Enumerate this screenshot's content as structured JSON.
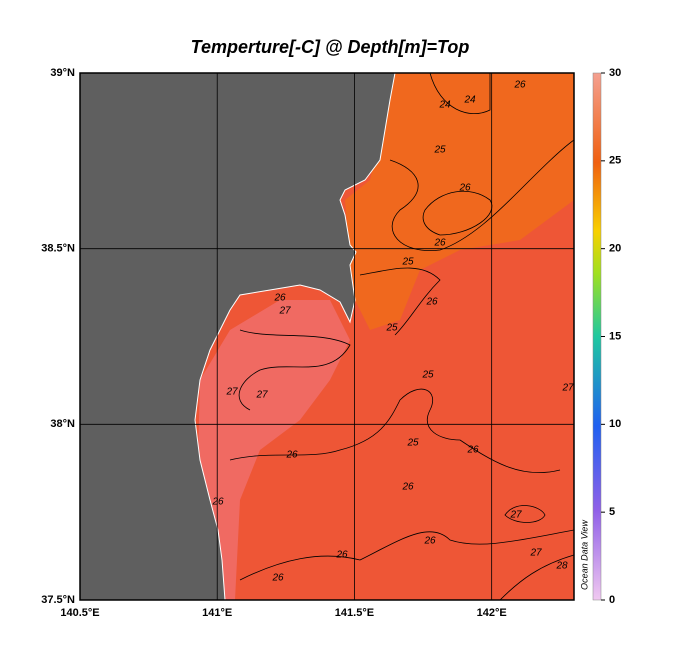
{
  "map": {
    "title": "Temperture[-C] @ Depth[m]=Top",
    "xlim": [
      140.5,
      142.3
    ],
    "ylim": [
      37.5,
      39
    ],
    "xticks": [
      {
        "value": 140.5,
        "label": "140.5°E"
      },
      {
        "value": 141,
        "label": "141°E"
      },
      {
        "value": 141.5,
        "label": "141.5°E"
      },
      {
        "value": 142,
        "label": "142°E"
      }
    ],
    "yticks": [
      {
        "value": 37.5,
        "label": "37.5°N"
      },
      {
        "value": 38,
        "label": "38°N"
      },
      {
        "value": 38.5,
        "label": "38.5°N"
      },
      {
        "value": 39,
        "label": "39°N"
      }
    ],
    "grid": true,
    "colorbar": {
      "lim": [
        0,
        30
      ],
      "ticks": [
        0,
        5,
        10,
        15,
        20,
        25,
        30
      ]
    },
    "contour_labels": [
      24,
      24,
      26,
      25,
      26,
      26,
      25,
      26,
      26,
      27,
      25,
      25,
      27,
      27,
      27,
      25,
      26,
      26,
      26,
      26,
      26,
      27,
      26,
      27,
      28,
      26
    ],
    "credit": "Ocean Data View"
  }
}
